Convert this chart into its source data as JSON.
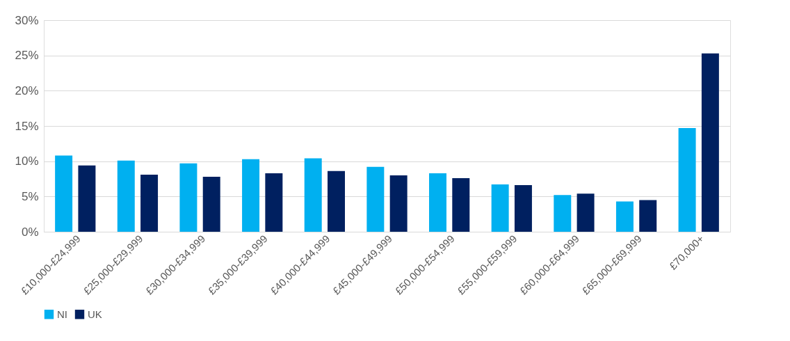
{
  "chart_data": {
    "type": "bar",
    "categories": [
      "£10,000-£24,999",
      "£25,000-£29,999",
      "£30,000-£34,999",
      "£35,000-£39,999",
      "£40,000-£44,999",
      "£45,000-£49,999",
      "£50,000-£54,999",
      "£55,000-£59,999",
      "£60,000-£64,999",
      "£65,000-£69,999",
      "£70,000+"
    ],
    "series": [
      {
        "name": "NI",
        "color": "#00b0f0",
        "values": [
          10.8,
          10.1,
          9.7,
          10.3,
          10.4,
          9.2,
          8.3,
          6.7,
          5.2,
          4.3,
          14.7
        ]
      },
      {
        "name": "UK",
        "color": "#002060",
        "values": [
          9.4,
          8.1,
          7.8,
          8.3,
          8.6,
          8.0,
          7.6,
          6.6,
          5.4,
          4.5,
          25.3
        ]
      }
    ],
    "ylim": [
      0,
      30
    ],
    "yticks": [
      {
        "value": 0,
        "label": "0%"
      },
      {
        "value": 5,
        "label": "5%"
      },
      {
        "value": 10,
        "label": "10%"
      },
      {
        "value": 15,
        "label": "15%"
      },
      {
        "value": 20,
        "label": "20%"
      },
      {
        "value": 25,
        "label": "25%"
      },
      {
        "value": 30,
        "label": "30%"
      }
    ],
    "grid": "y",
    "legend": "bottom"
  }
}
